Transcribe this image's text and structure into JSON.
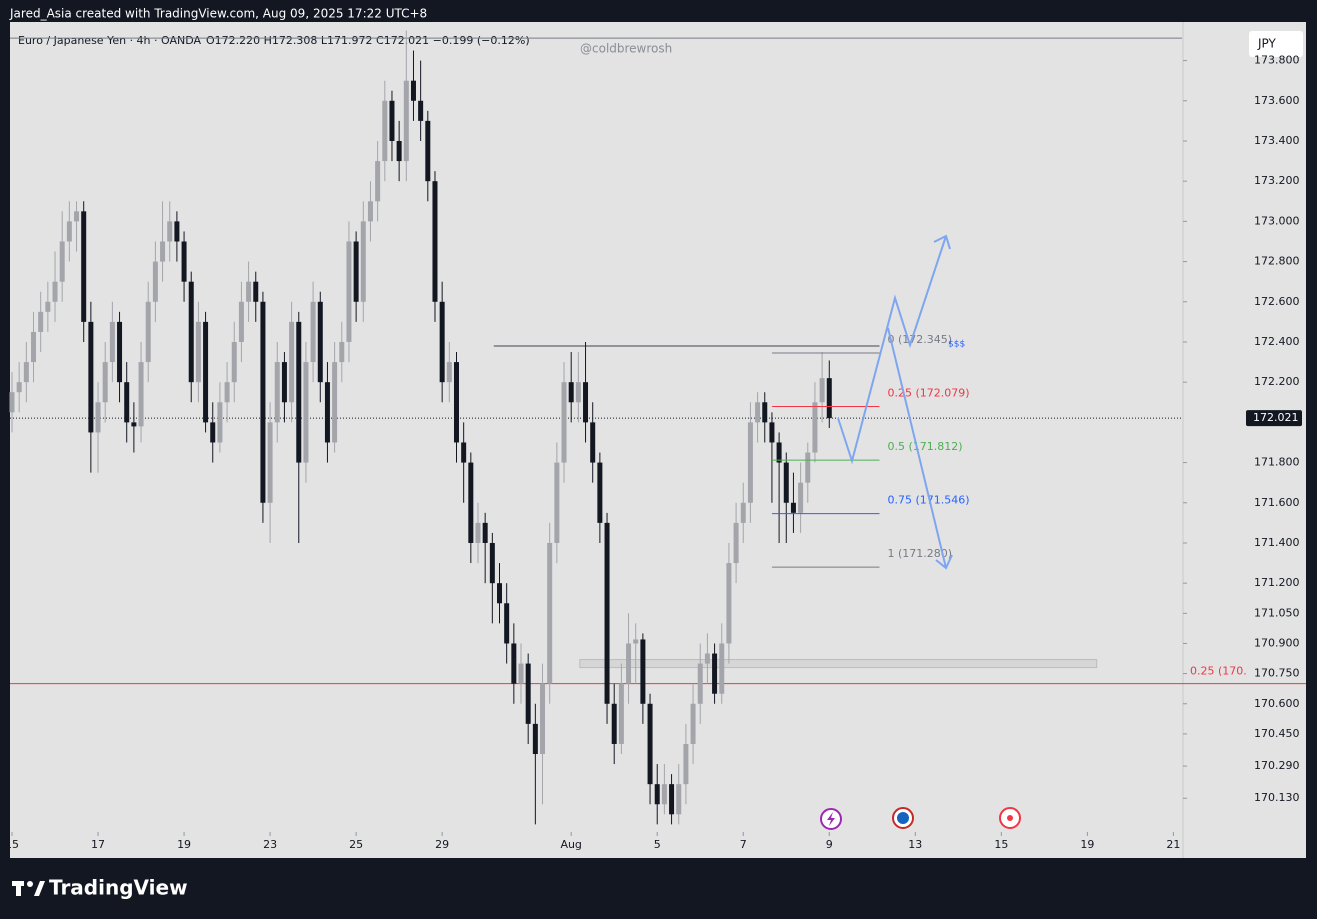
{
  "chart_data": {
    "type": "candlestick",
    "header": "Jared_Asia created with TradingView.com, Aug 09, 2025 17:22 UTC+8",
    "symbol": "Euro / Japanese Yen · 4h · OANDA",
    "quote": "O172.220  H172.308  L171.972  C172.021  −0.199 (−0.12%)",
    "watermark": "@coldbrewrosh",
    "currency": "JPY",
    "brand": "TradingView",
    "up_color": "#a3a5ab",
    "down_color": "#131722",
    "xlim": [
      -0.28,
      163.2
    ],
    "ylim": [
      169.962,
      173.992
    ],
    "xticks": [
      {
        "value": 0,
        "label": "15"
      },
      {
        "value": 12,
        "label": "17"
      },
      {
        "value": 24,
        "label": "19"
      },
      {
        "value": 36,
        "label": "23"
      },
      {
        "value": 48,
        "label": "25"
      },
      {
        "value": 60,
        "label": "29"
      },
      {
        "value": 78,
        "label": "Aug"
      },
      {
        "value": 90,
        "label": "5"
      },
      {
        "value": 102,
        "label": "7"
      },
      {
        "value": 114,
        "label": "9"
      },
      {
        "value": 126,
        "label": "13"
      },
      {
        "value": 138,
        "label": "15"
      },
      {
        "value": 150,
        "label": "19"
      },
      {
        "value": 162,
        "label": "21"
      }
    ],
    "yticks": [
      {
        "value": 173.8,
        "label": "173.800"
      },
      {
        "value": 173.6,
        "label": "173.600"
      },
      {
        "value": 173.4,
        "label": "173.400"
      },
      {
        "value": 173.2,
        "label": "173.200"
      },
      {
        "value": 173.0,
        "label": "173.000"
      },
      {
        "value": 172.8,
        "label": "172.800"
      },
      {
        "value": 172.6,
        "label": "172.600"
      },
      {
        "value": 172.4,
        "label": "172.400"
      },
      {
        "value": 172.2,
        "label": "172.200"
      },
      {
        "value": 171.8,
        "label": "171.800"
      },
      {
        "value": 171.6,
        "label": "171.600"
      },
      {
        "value": 171.4,
        "label": "171.400"
      },
      {
        "value": 171.2,
        "label": "171.200"
      },
      {
        "value": 171.05,
        "label": "171.050"
      },
      {
        "value": 170.9,
        "label": "170.900"
      },
      {
        "value": 170.75,
        "label": "170.750"
      },
      {
        "value": 170.6,
        "label": "170.600"
      },
      {
        "value": 170.45,
        "label": "170.450"
      },
      {
        "value": 170.29,
        "label": "170.290"
      },
      {
        "value": 170.13,
        "label": "170.130"
      }
    ],
    "last_price": {
      "value": 172.021,
      "label": "172.021"
    },
    "candles": [
      [
        172.05,
        172.25,
        171.95,
        172.15
      ],
      [
        172.15,
        172.3,
        172.05,
        172.2
      ],
      [
        172.2,
        172.4,
        172.1,
        172.3
      ],
      [
        172.3,
        172.55,
        172.2,
        172.45
      ],
      [
        172.45,
        172.65,
        172.35,
        172.55
      ],
      [
        172.55,
        172.7,
        172.45,
        172.6
      ],
      [
        172.6,
        172.85,
        172.5,
        172.7
      ],
      [
        172.7,
        173.05,
        172.6,
        172.9
      ],
      [
        172.9,
        173.1,
        172.8,
        173.0
      ],
      [
        173.0,
        173.1,
        172.85,
        173.05
      ],
      [
        173.05,
        173.1,
        172.4,
        172.5
      ],
      [
        172.5,
        172.6,
        171.75,
        171.95
      ],
      [
        171.95,
        172.2,
        171.75,
        172.1
      ],
      [
        172.1,
        172.4,
        172.0,
        172.3
      ],
      [
        172.3,
        172.6,
        172.2,
        172.5
      ],
      [
        172.5,
        172.55,
        172.1,
        172.2
      ],
      [
        172.2,
        172.3,
        171.9,
        172.0
      ],
      [
        172.0,
        172.1,
        171.85,
        171.98
      ],
      [
        171.98,
        172.4,
        171.9,
        172.3
      ],
      [
        172.3,
        172.7,
        172.2,
        172.6
      ],
      [
        172.6,
        172.9,
        172.5,
        172.8
      ],
      [
        172.8,
        173.1,
        172.7,
        172.9
      ],
      [
        172.9,
        173.1,
        172.8,
        173.0
      ],
      [
        173.0,
        173.05,
        172.8,
        172.9
      ],
      [
        172.9,
        172.95,
        172.6,
        172.7
      ],
      [
        172.7,
        172.75,
        172.1,
        172.2
      ],
      [
        172.2,
        172.6,
        172.1,
        172.5
      ],
      [
        172.5,
        172.55,
        171.95,
        172.0
      ],
      [
        172.0,
        172.1,
        171.8,
        171.9
      ],
      [
        171.9,
        172.2,
        171.85,
        172.1
      ],
      [
        172.1,
        172.3,
        172.0,
        172.2
      ],
      [
        172.2,
        172.5,
        172.1,
        172.4
      ],
      [
        172.4,
        172.7,
        172.3,
        172.6
      ],
      [
        172.6,
        172.8,
        172.5,
        172.7
      ],
      [
        172.7,
        172.75,
        172.5,
        172.6
      ],
      [
        172.6,
        172.65,
        171.5,
        171.6
      ],
      [
        171.6,
        172.1,
        171.4,
        172.0
      ],
      [
        172.0,
        172.4,
        171.9,
        172.3
      ],
      [
        172.3,
        172.35,
        172.0,
        172.1
      ],
      [
        172.1,
        172.6,
        172.0,
        172.5
      ],
      [
        172.5,
        172.55,
        171.4,
        171.8
      ],
      [
        171.8,
        172.4,
        171.7,
        172.3
      ],
      [
        172.3,
        172.7,
        172.2,
        172.6
      ],
      [
        172.6,
        172.65,
        172.1,
        172.2
      ],
      [
        172.2,
        172.3,
        171.8,
        171.9
      ],
      [
        171.9,
        172.4,
        171.85,
        172.3
      ],
      [
        172.3,
        172.5,
        172.2,
        172.4
      ],
      [
        172.4,
        173.0,
        172.3,
        172.9
      ],
      [
        172.9,
        172.95,
        172.5,
        172.6
      ],
      [
        172.6,
        173.1,
        172.5,
        173.0
      ],
      [
        173.0,
        173.2,
        172.9,
        173.1
      ],
      [
        173.1,
        173.4,
        173.0,
        173.3
      ],
      [
        173.3,
        173.7,
        173.2,
        173.6
      ],
      [
        173.6,
        173.65,
        173.3,
        173.4
      ],
      [
        173.4,
        173.5,
        173.2,
        173.3
      ],
      [
        173.3,
        173.95,
        173.2,
        173.7
      ],
      [
        173.7,
        173.85,
        173.5,
        173.6
      ],
      [
        173.6,
        173.8,
        173.4,
        173.5
      ],
      [
        173.5,
        173.55,
        173.1,
        173.2
      ],
      [
        173.2,
        173.25,
        172.5,
        172.6
      ],
      [
        172.6,
        172.7,
        172.1,
        172.2
      ],
      [
        172.2,
        172.4,
        172.1,
        172.3
      ],
      [
        172.3,
        172.35,
        171.8,
        171.9
      ],
      [
        171.9,
        172.0,
        171.6,
        171.8
      ],
      [
        171.8,
        171.85,
        171.3,
        171.4
      ],
      [
        171.4,
        171.6,
        171.3,
        171.5
      ],
      [
        171.5,
        171.55,
        171.2,
        171.4
      ],
      [
        171.4,
        171.45,
        171.0,
        171.2
      ],
      [
        171.2,
        171.3,
        171.0,
        171.1
      ],
      [
        171.1,
        171.2,
        170.8,
        170.9
      ],
      [
        170.9,
        171.0,
        170.6,
        170.7
      ],
      [
        170.7,
        170.9,
        170.6,
        170.8
      ],
      [
        170.8,
        170.85,
        170.4,
        170.5
      ],
      [
        170.5,
        170.6,
        170.0,
        170.35
      ],
      [
        170.35,
        170.8,
        170.1,
        170.7
      ],
      [
        170.7,
        171.5,
        170.6,
        171.4
      ],
      [
        171.4,
        171.9,
        171.3,
        171.8
      ],
      [
        171.8,
        172.3,
        171.7,
        172.2
      ],
      [
        172.2,
        172.35,
        172.0,
        172.1
      ],
      [
        172.1,
        172.35,
        172.0,
        172.2
      ],
      [
        172.2,
        172.4,
        171.9,
        172.0
      ],
      [
        172.0,
        172.1,
        171.7,
        171.8
      ],
      [
        171.8,
        171.85,
        171.4,
        171.5
      ],
      [
        171.5,
        171.55,
        170.5,
        170.6
      ],
      [
        170.6,
        170.7,
        170.3,
        170.4
      ],
      [
        170.4,
        170.8,
        170.35,
        170.7
      ],
      [
        170.7,
        171.05,
        170.6,
        170.9
      ],
      [
        170.9,
        171.0,
        170.7,
        170.92
      ],
      [
        170.92,
        170.95,
        170.5,
        170.6
      ],
      [
        170.6,
        170.65,
        170.1,
        170.2
      ],
      [
        170.2,
        170.3,
        170.0,
        170.1
      ],
      [
        170.1,
        170.3,
        170.05,
        170.2
      ],
      [
        170.2,
        170.25,
        170.0,
        170.05
      ],
      [
        170.05,
        170.3,
        170.0,
        170.2
      ],
      [
        170.2,
        170.5,
        170.1,
        170.4
      ],
      [
        170.4,
        170.7,
        170.3,
        170.6
      ],
      [
        170.6,
        170.9,
        170.5,
        170.8
      ],
      [
        170.8,
        170.95,
        170.7,
        170.85
      ],
      [
        170.85,
        170.9,
        170.6,
        170.65
      ],
      [
        170.65,
        171.0,
        170.6,
        170.9
      ],
      [
        170.9,
        171.4,
        170.8,
        171.3
      ],
      [
        171.3,
        171.6,
        171.2,
        171.5
      ],
      [
        171.5,
        171.7,
        171.4,
        171.6
      ],
      [
        171.6,
        172.1,
        171.5,
        172.0
      ],
      [
        172.0,
        172.15,
        171.9,
        172.1
      ],
      [
        172.1,
        172.15,
        171.9,
        172.0
      ],
      [
        172.0,
        172.05,
        171.6,
        171.9
      ],
      [
        171.9,
        171.95,
        171.4,
        171.8
      ],
      [
        171.8,
        171.85,
        171.4,
        171.6
      ],
      [
        171.6,
        171.75,
        171.45,
        171.55
      ],
      [
        171.55,
        171.8,
        171.45,
        171.7
      ],
      [
        171.7,
        171.9,
        171.6,
        171.85
      ],
      [
        171.85,
        172.2,
        171.8,
        172.1
      ],
      [
        172.1,
        172.35,
        172.0,
        172.22
      ],
      [
        172.22,
        172.308,
        171.972,
        172.021
      ]
    ],
    "fib_range": [
      106,
      121
    ],
    "fib_levels": [
      {
        "value": 172.345,
        "label": "0 (172.345)",
        "color": "#787b86"
      },
      {
        "value": 172.079,
        "label": "0.25 (172.079)",
        "color": "#f23645"
      },
      {
        "value": 171.812,
        "label": "0.5 (171.812)",
        "color": "#4caf50"
      },
      {
        "value": 171.546,
        "label": "0.75 (171.546)",
        "color": "#2962ff"
      },
      {
        "value": 171.28,
        "label": "1 (171.280)",
        "color": "#787b86"
      }
    ],
    "target_label": "$$$",
    "resistance": {
      "value": 172.38,
      "range": [
        67.2,
        121
      ],
      "color": "#434651"
    },
    "top_line": {
      "value": 173.912,
      "color": "#787b86"
    },
    "support": {
      "value": 170.7,
      "label": "0.25 (170.",
      "color": "#f23645"
    },
    "zone": {
      "high": 170.82,
      "low": 170.78,
      "range": [
        79.2,
        151.3
      ]
    }
  }
}
